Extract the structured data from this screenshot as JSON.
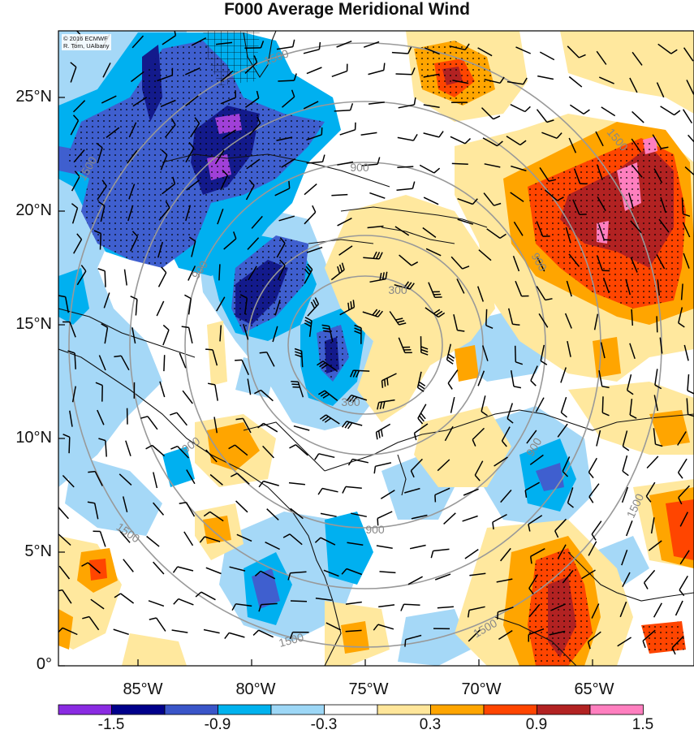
{
  "title": "F000 Average Meridional Wind",
  "credit": {
    "line1": "© 2016 ECMWF",
    "line2": "R. Torn, UAlbany"
  },
  "axes": {
    "lat_labels": [
      "25°N",
      "20°N",
      "15°N",
      "10°N",
      "5°N",
      "0°"
    ],
    "lon_labels": [
      "85°W",
      "80°W",
      "75°W",
      "70°W",
      "65°W"
    ]
  },
  "colorbar": {
    "labels": [
      "-1.5",
      "-0.9",
      "-0.3",
      "0.3",
      "0.9",
      "1.5"
    ],
    "colors": [
      "#8a2be2",
      "#00008b",
      "#3a55c8",
      "#00b2ee",
      "#9dd7f6",
      "#ffffff",
      "#ffe69a",
      "#ffa500",
      "#ff4500",
      "#b22222",
      "#ff7fbf"
    ]
  },
  "range_rings": {
    "labels": [
      "300",
      "300",
      "900",
      "900",
      "900",
      "900",
      "900",
      "1500",
      "1500",
      "1500",
      "1500",
      "1500",
      "1500",
      "1500",
      "900"
    ]
  },
  "colors": {
    "ring": "#999999",
    "coast": "#111111",
    "barb": "#000000"
  }
}
